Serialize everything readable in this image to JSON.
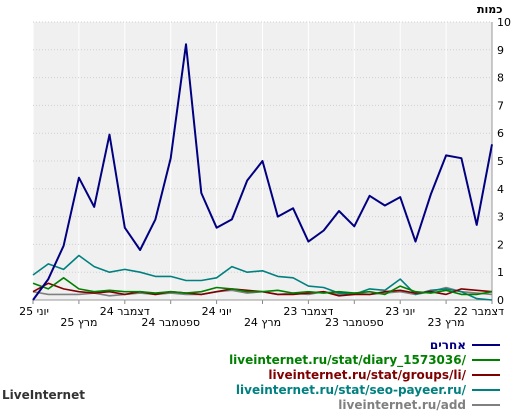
{
  "chart_data": {
    "type": "line",
    "ylabel": "כמות",
    "ylim": [
      0,
      10
    ],
    "y_ticks": [
      "0",
      "1",
      "2",
      "3",
      "4",
      "5",
      "6",
      "7",
      "8",
      "9",
      "10"
    ],
    "x_tick_labels": [
      "דצמבר 22",
      "מרץ 23",
      "יוני 23",
      "ספטמבר 23",
      "דצמבר 23",
      "מרץ 24",
      "יוני 24",
      "ספטמבר 24",
      "דצמבר 24",
      "מרץ 25",
      "יוני 25"
    ],
    "x_labels_reversed": true,
    "grid": true,
    "legend_position": "bottom-right",
    "series": [
      {
        "name": "אחרים",
        "color": "#000080",
        "values": [
          5.6,
          2.7,
          5.1,
          5.2,
          3.8,
          2.1,
          3.7,
          3.4,
          3.75,
          2.65,
          3.2,
          2.5,
          2.1,
          3.3,
          3.0,
          5.0,
          4.3,
          2.9,
          2.6,
          3.85,
          9.2,
          5.1,
          2.9,
          1.8,
          2.6,
          5.95,
          3.35,
          4.4,
          1.95,
          0.75,
          0.0
        ]
      },
      {
        "name": "liveinternet.ru/stat/diary_1573036/",
        "color": "#008000",
        "values": [
          0.3,
          0.2,
          0.2,
          0.35,
          0.25,
          0.3,
          0.5,
          0.2,
          0.3,
          0.25,
          0.3,
          0.25,
          0.3,
          0.25,
          0.35,
          0.3,
          0.3,
          0.4,
          0.45,
          0.3,
          0.25,
          0.3,
          0.25,
          0.3,
          0.3,
          0.35,
          0.3,
          0.4,
          0.8,
          0.4,
          0.6
        ]
      },
      {
        "name": "liveinternet.ru/stat/groups/li/",
        "color": "#800000",
        "values": [
          0.3,
          0.35,
          0.4,
          0.2,
          0.3,
          0.25,
          0.35,
          0.3,
          0.2,
          0.2,
          0.15,
          0.3,
          0.25,
          0.2,
          0.2,
          0.3,
          0.35,
          0.4,
          0.3,
          0.2,
          0.25,
          0.3,
          0.2,
          0.3,
          0.2,
          0.3,
          0.25,
          0.3,
          0.4,
          0.6,
          0.3
        ]
      },
      {
        "name": "liveinternet.ru/stat/seo-payeer.ru/",
        "color": "#008080",
        "values": [
          0.0,
          0.05,
          0.3,
          0.4,
          0.35,
          0.2,
          0.75,
          0.35,
          0.4,
          0.2,
          0.25,
          0.45,
          0.5,
          0.8,
          0.85,
          1.05,
          1.0,
          1.2,
          0.8,
          0.7,
          0.7,
          0.85,
          0.85,
          1.0,
          1.1,
          1.0,
          1.2,
          1.6,
          1.1,
          1.3,
          0.9
        ]
      },
      {
        "name": "liveinternet.ru/add",
        "color": "#808080",
        "values": [
          0.2,
          0.25,
          0.3,
          0.45,
          0.3,
          0.2,
          0.3,
          0.25,
          0.2,
          0.25,
          0.2,
          0.3,
          0.2,
          0.25,
          0.2,
          0.3,
          0.25,
          0.35,
          0.3,
          0.2,
          0.2,
          0.25,
          0.2,
          0.25,
          0.2,
          0.15,
          0.25,
          0.2,
          0.2,
          0.2,
          0.3
        ]
      }
    ]
  },
  "brand": "LiveInternet"
}
